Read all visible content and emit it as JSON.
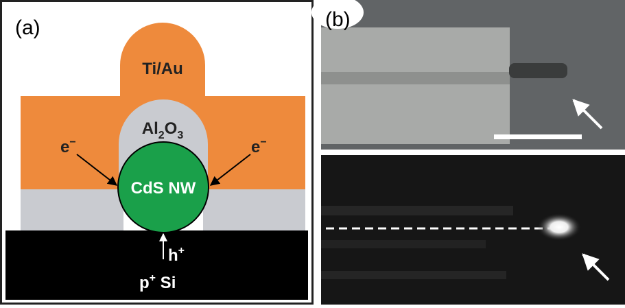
{
  "panel_a": {
    "label": "(a)",
    "ti_au": "Ti/Au",
    "al2o3": {
      "part1": "Al",
      "sub1": "2",
      "part2": "O",
      "sub2": "3"
    },
    "electron_left": {
      "base": "e",
      "sup": "−"
    },
    "electron_right": {
      "base": "e",
      "sup": "−"
    },
    "nanowire": "CdS NW",
    "hole": {
      "base": "h",
      "sup": "+"
    },
    "substrate": {
      "base": "p",
      "sup": "+",
      "rest": " Si"
    }
  },
  "panel_b": {
    "label": "(b)"
  }
}
